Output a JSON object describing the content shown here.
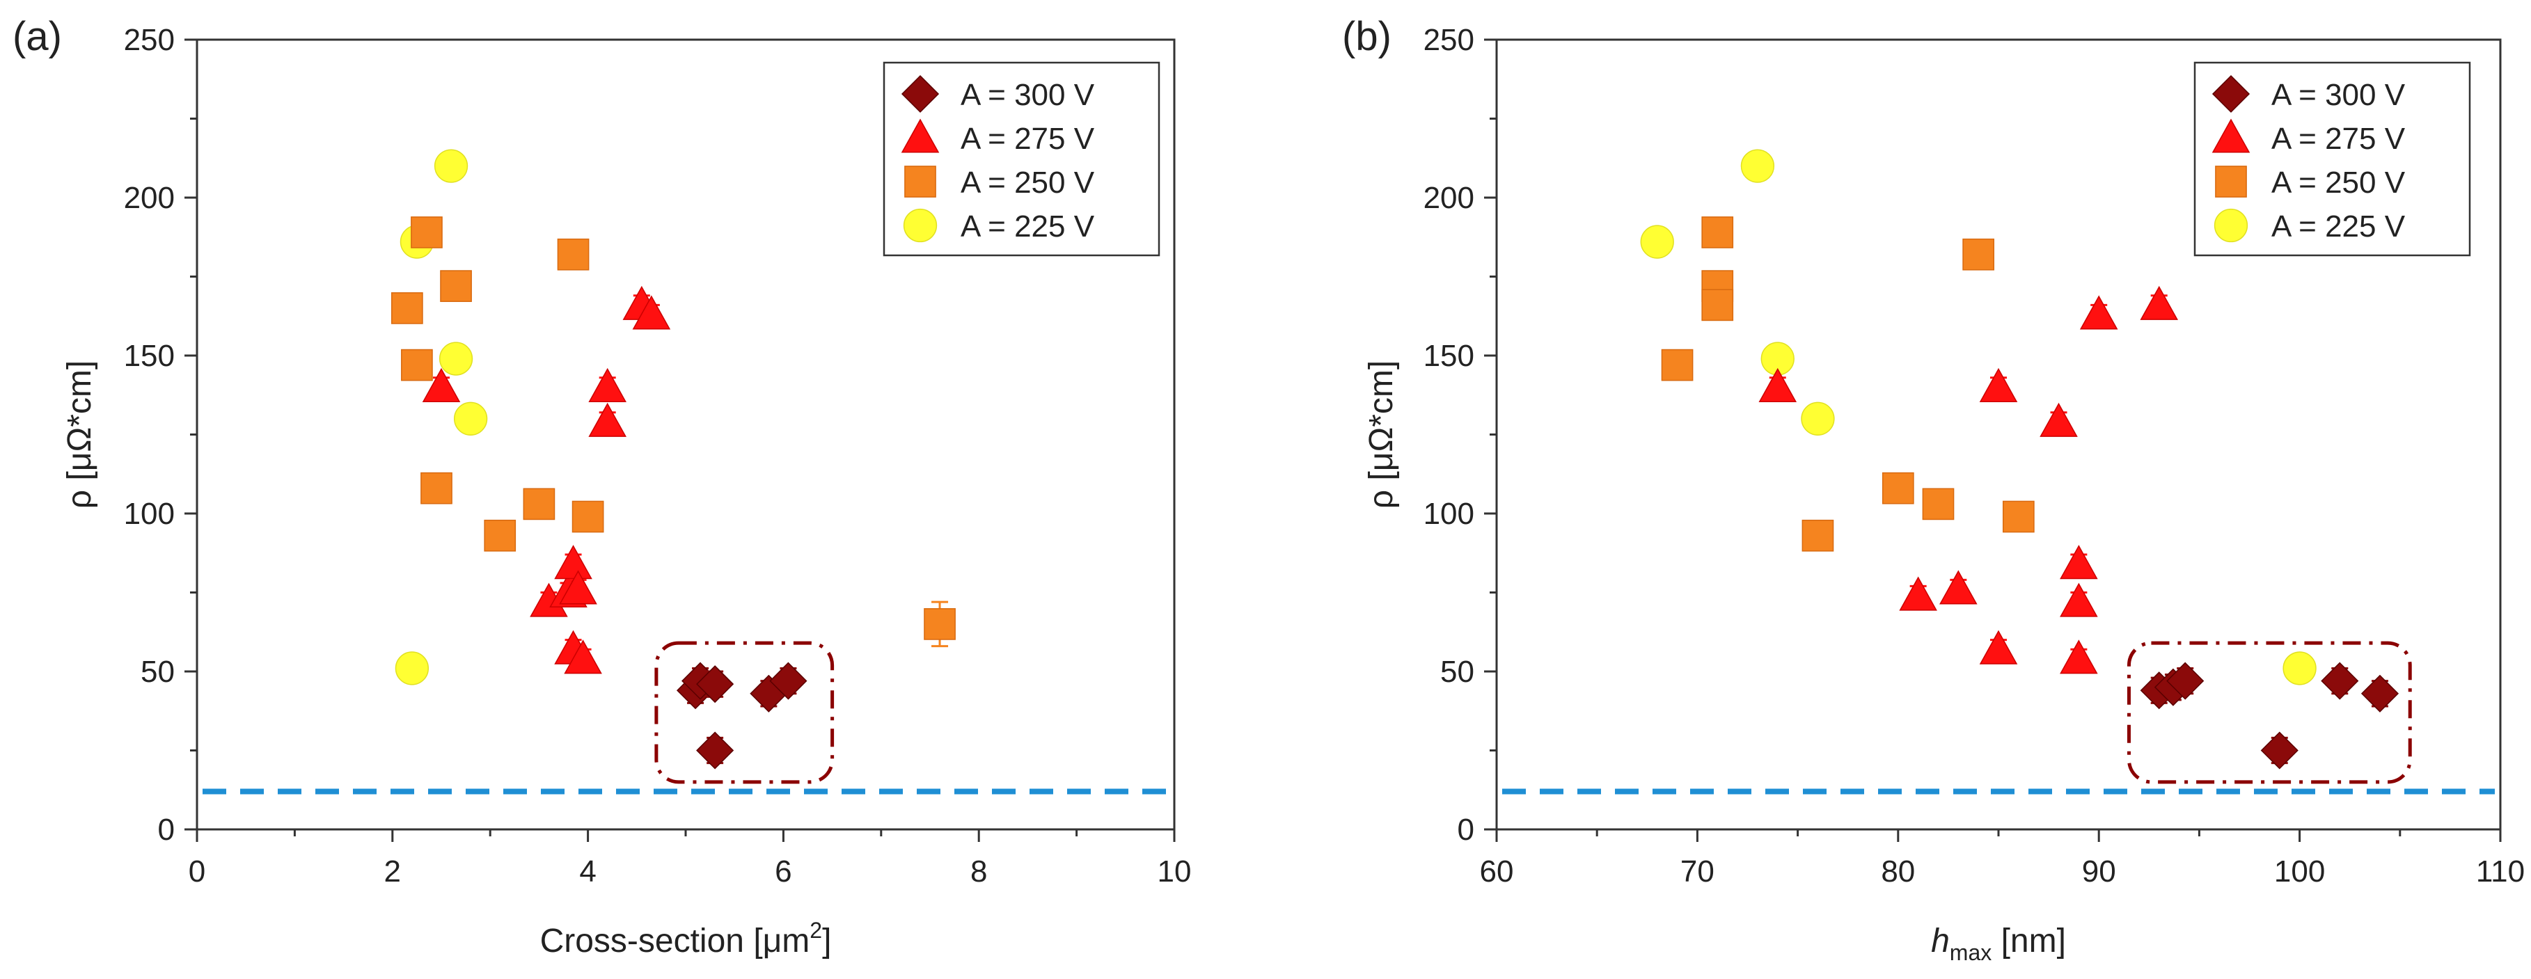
{
  "reference_line_color": "#1f8fd4",
  "highlight_box_color": "#8b0000",
  "legend_entries": [
    {
      "label": "A = 300 V",
      "marker": "diamond",
      "color": "#8b0a0a"
    },
    {
      "label": "A = 275 V",
      "marker": "triangle",
      "color": "#ff1010"
    },
    {
      "label": "A = 250 V",
      "marker": "square",
      "color": "#f5841f"
    },
    {
      "label": "A = 225 V",
      "marker": "circle",
      "color": "#ffff33"
    }
  ],
  "chart_data": [
    {
      "type": "scatter",
      "panel_label": "(a)",
      "title": "",
      "xlabel": "Cross-section [μm2]",
      "xlabel_main": "Cross-section [μm",
      "xlabel_sup": "2",
      "xlabel_tail": "]",
      "ylabel": "ρ [μΩ*cm]",
      "xlim": [
        0,
        10
      ],
      "ylim": [
        0,
        250
      ],
      "x_ticks": [
        "0",
        "2",
        "4",
        "6",
        "8",
        "10"
      ],
      "y_ticks": [
        "0",
        "50",
        "100",
        "150",
        "200",
        "250"
      ],
      "legend_position": "top-right",
      "reference_line_y": 12,
      "highlight_box": {
        "x0": 4.7,
        "x1": 6.5,
        "y0": 15,
        "y1": 59
      },
      "series": [
        {
          "name": "A = 300 V",
          "x": [
            5.1,
            5.15,
            5.3,
            5.3,
            5.85,
            6.05
          ],
          "y": [
            44,
            47,
            46,
            25,
            43,
            47
          ],
          "err": [
            4,
            4,
            4,
            4,
            4,
            4
          ]
        },
        {
          "name": "A = 275 V",
          "x": [
            2.5,
            3.6,
            3.8,
            3.85,
            3.85,
            3.9,
            3.95,
            4.2,
            4.2,
            4.55,
            4.65
          ],
          "y": [
            140,
            72,
            75,
            57,
            84,
            76,
            54,
            140,
            129,
            166,
            163
          ],
          "err": [
            3,
            3,
            3,
            3,
            3,
            3,
            3,
            3,
            3,
            3,
            3
          ]
        },
        {
          "name": "A = 250 V",
          "x": [
            2.15,
            2.25,
            2.35,
            2.45,
            2.65,
            3.1,
            3.5,
            3.85,
            4.0,
            7.6
          ],
          "y": [
            165,
            147,
            189,
            108,
            172,
            93,
            103,
            182,
            99,
            65
          ],
          "err": [
            2,
            2,
            2,
            2,
            2,
            2,
            2,
            2,
            2,
            7
          ]
        },
        {
          "name": "A = 225 V",
          "x": [
            2.2,
            2.25,
            2.6,
            2.65,
            2.8
          ],
          "y": [
            51,
            186,
            210,
            149,
            130
          ],
          "err": [
            0,
            0,
            0,
            0,
            0
          ]
        }
      ]
    },
    {
      "type": "scatter",
      "panel_label": "(b)",
      "title": "",
      "xlabel": "hmax [nm]",
      "xlabel_main": "h",
      "xlabel_sub": "max",
      "xlabel_tail": " [nm]",
      "ylabel": "ρ [μΩ*cm]",
      "xlim": [
        60,
        110
      ],
      "ylim": [
        0,
        250
      ],
      "x_ticks": [
        "60",
        "70",
        "80",
        "90",
        "100",
        "110"
      ],
      "y_ticks": [
        "0",
        "50",
        "100",
        "150",
        "200",
        "250"
      ],
      "legend_position": "top-right",
      "reference_line_y": 12,
      "highlight_box": {
        "x0": 91.5,
        "x1": 105.5,
        "y0": 15,
        "y1": 59
      },
      "series": [
        {
          "name": "A = 300 V",
          "x": [
            93,
            93.7,
            94.3,
            99,
            102,
            104
          ],
          "y": [
            44,
            45,
            47,
            25,
            47,
            43
          ],
          "err": [
            4,
            4,
            4,
            4,
            4,
            4
          ]
        },
        {
          "name": "A = 275 V",
          "x": [
            74,
            81,
            83,
            85,
            85,
            88,
            89,
            89,
            89,
            90,
            93
          ],
          "y": [
            140,
            74,
            76,
            57,
            140,
            129,
            84,
            72,
            54,
            163,
            166
          ],
          "err": [
            3,
            3,
            3,
            3,
            3,
            3,
            3,
            3,
            3,
            3,
            3
          ]
        },
        {
          "name": "A = 250 V",
          "x": [
            69,
            71,
            71,
            71,
            76,
            80,
            82,
            84,
            86
          ],
          "y": [
            147,
            189,
            172,
            166,
            93,
            108,
            103,
            182,
            99
          ],
          "err": [
            2,
            2,
            2,
            2,
            2,
            2,
            2,
            2,
            2
          ]
        },
        {
          "name": "A = 225 V",
          "x": [
            68,
            73,
            74,
            76,
            100
          ],
          "y": [
            186,
            210,
            149,
            130,
            51
          ],
          "err": [
            0,
            0,
            0,
            0,
            0
          ]
        }
      ]
    }
  ]
}
